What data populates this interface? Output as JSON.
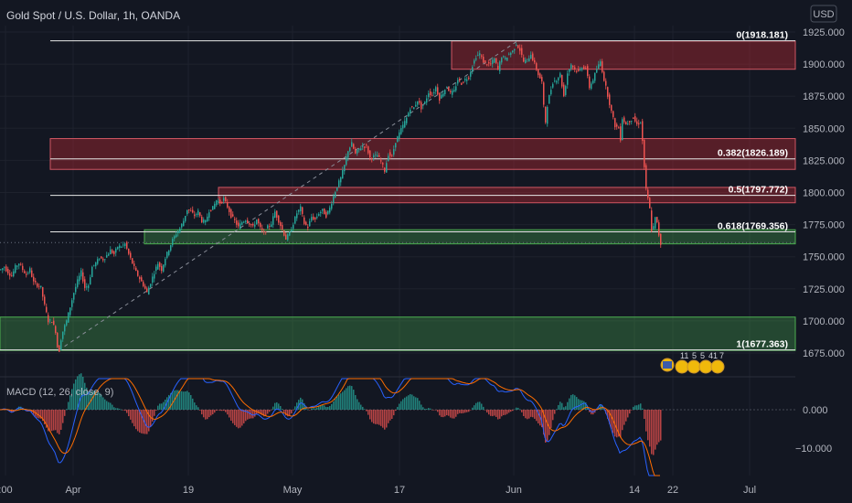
{
  "header": {
    "title": "Gold Spot / U.S. Dollar, 1h, OANDA",
    "currency": "USD"
  },
  "macd": {
    "label": "MACD (12, 26, close, 9)",
    "ticks": [
      "0.000",
      "−10.000"
    ]
  },
  "events": {
    "counts": [
      "11",
      "5",
      "5",
      "41",
      "7"
    ]
  },
  "chart_data": {
    "type": "candlestick",
    "title": "Gold Spot / U.S. Dollar, 1h, OANDA",
    "y_ticks": [
      "1925.000",
      "1900.000",
      "1875.000",
      "1850.000",
      "1825.000",
      "1800.000",
      "1775.000",
      "1750.000",
      "1725.000",
      "1700.000",
      "1675.000"
    ],
    "x_ticks": [
      ":00",
      "Apr",
      "19",
      "May",
      "17",
      "Jun",
      "14",
      "22",
      "Jul"
    ],
    "ylim": [
      1664,
      1930
    ],
    "fib_levels": [
      {
        "label": "0(1918.181)",
        "value": 1918.181
      },
      {
        "label": "0.382(1826.189)",
        "value": 1826.189
      },
      {
        "label": "0.5(1797.772)",
        "value": 1797.772
      },
      {
        "label": "0.618(1769.356)",
        "value": 1769.356
      },
      {
        "label": "1(1677.363)",
        "value": 1677.363
      }
    ],
    "zones": [
      {
        "kind": "resistance",
        "from": 1896,
        "to": 1918
      },
      {
        "kind": "resistance",
        "from": 1818,
        "to": 1842
      },
      {
        "kind": "resistance",
        "from": 1792,
        "to": 1804
      },
      {
        "kind": "support",
        "from": 1760,
        "to": 1771
      },
      {
        "kind": "support",
        "from": 1677,
        "to": 1703
      }
    ],
    "price_path": [
      [
        0,
        1740
      ],
      [
        4,
        1742
      ],
      [
        8,
        1738
      ],
      [
        12,
        1735
      ],
      [
        16,
        1742
      ],
      [
        20,
        1745
      ],
      [
        24,
        1740
      ],
      [
        28,
        1736
      ],
      [
        32,
        1740
      ],
      [
        36,
        1730
      ],
      [
        40,
        1728
      ],
      [
        44,
        1726
      ],
      [
        48,
        1712
      ],
      [
        52,
        1700
      ],
      [
        56,
        1700
      ],
      [
        60,
        1692
      ],
      [
        62,
        1680
      ],
      [
        64,
        1677
      ],
      [
        66,
        1686
      ],
      [
        68,
        1692
      ],
      [
        72,
        1700
      ],
      [
        76,
        1711
      ],
      [
        80,
        1722
      ],
      [
        84,
        1731
      ],
      [
        88,
        1738
      ],
      [
        92,
        1726
      ],
      [
        96,
        1728
      ],
      [
        100,
        1742
      ],
      [
        104,
        1745
      ],
      [
        108,
        1749
      ],
      [
        112,
        1748
      ],
      [
        116,
        1751
      ],
      [
        120,
        1755
      ],
      [
        124,
        1752
      ],
      [
        128,
        1758
      ],
      [
        132,
        1758
      ],
      [
        136,
        1760
      ],
      [
        140,
        1752
      ],
      [
        144,
        1745
      ],
      [
        148,
        1738
      ],
      [
        152,
        1733
      ],
      [
        156,
        1728
      ],
      [
        160,
        1722
      ],
      [
        164,
        1730
      ],
      [
        168,
        1738
      ],
      [
        172,
        1745
      ],
      [
        176,
        1740
      ],
      [
        180,
        1749
      ],
      [
        184,
        1756
      ],
      [
        188,
        1763
      ],
      [
        192,
        1768
      ],
      [
        196,
        1772
      ],
      [
        200,
        1778
      ],
      [
        204,
        1787
      ],
      [
        208,
        1785
      ],
      [
        212,
        1782
      ],
      [
        216,
        1785
      ],
      [
        220,
        1778
      ],
      [
        224,
        1777
      ],
      [
        228,
        1786
      ],
      [
        232,
        1788
      ],
      [
        236,
        1794
      ],
      [
        240,
        1792
      ],
      [
        244,
        1795
      ],
      [
        248,
        1789
      ],
      [
        252,
        1782
      ],
      [
        256,
        1778
      ],
      [
        260,
        1773
      ],
      [
        264,
        1777
      ],
      [
        268,
        1779
      ],
      [
        272,
        1776
      ],
      [
        276,
        1773
      ],
      [
        280,
        1779
      ],
      [
        284,
        1772
      ],
      [
        288,
        1768
      ],
      [
        292,
        1773
      ],
      [
        296,
        1776
      ],
      [
        300,
        1785
      ],
      [
        304,
        1778
      ],
      [
        308,
        1771
      ],
      [
        312,
        1764
      ],
      [
        316,
        1768
      ],
      [
        320,
        1776
      ],
      [
        324,
        1784
      ],
      [
        328,
        1788
      ],
      [
        332,
        1776
      ],
      [
        336,
        1773
      ],
      [
        340,
        1781
      ],
      [
        344,
        1779
      ],
      [
        348,
        1784
      ],
      [
        352,
        1786
      ],
      [
        356,
        1782
      ],
      [
        360,
        1788
      ],
      [
        364,
        1797
      ],
      [
        368,
        1805
      ],
      [
        372,
        1811
      ],
      [
        376,
        1821
      ],
      [
        380,
        1833
      ],
      [
        384,
        1838
      ],
      [
        388,
        1830
      ],
      [
        392,
        1834
      ],
      [
        396,
        1836
      ],
      [
        400,
        1836
      ],
      [
        404,
        1827
      ],
      [
        408,
        1828
      ],
      [
        412,
        1829
      ],
      [
        416,
        1824
      ],
      [
        420,
        1817
      ],
      [
        424,
        1830
      ],
      [
        428,
        1828
      ],
      [
        432,
        1840
      ],
      [
        436,
        1846
      ],
      [
        440,
        1852
      ],
      [
        444,
        1858
      ],
      [
        448,
        1866
      ],
      [
        452,
        1866
      ],
      [
        456,
        1872
      ],
      [
        460,
        1866
      ],
      [
        464,
        1870
      ],
      [
        468,
        1878
      ],
      [
        472,
        1876
      ],
      [
        476,
        1882
      ],
      [
        480,
        1873
      ],
      [
        484,
        1878
      ],
      [
        488,
        1883
      ],
      [
        492,
        1877
      ],
      [
        496,
        1879
      ],
      [
        500,
        1888
      ],
      [
        504,
        1885
      ],
      [
        508,
        1888
      ],
      [
        512,
        1890
      ],
      [
        516,
        1899
      ],
      [
        520,
        1906
      ],
      [
        524,
        1908
      ],
      [
        528,
        1902
      ],
      [
        532,
        1900
      ],
      [
        536,
        1900
      ],
      [
        540,
        1904
      ],
      [
        544,
        1896
      ],
      [
        548,
        1906
      ],
      [
        552,
        1904
      ],
      [
        556,
        1908
      ],
      [
        560,
        1910
      ],
      [
        564,
        1916
      ],
      [
        568,
        1911
      ],
      [
        572,
        1902
      ],
      [
        576,
        1903
      ],
      [
        580,
        1908
      ],
      [
        584,
        1900
      ],
      [
        588,
        1892
      ],
      [
        592,
        1886
      ],
      [
        594,
        1867
      ],
      [
        596,
        1855
      ],
      [
        598,
        1868
      ],
      [
        600,
        1875
      ],
      [
        604,
        1886
      ],
      [
        608,
        1888
      ],
      [
        612,
        1892
      ],
      [
        616,
        1875
      ],
      [
        620,
        1893
      ],
      [
        624,
        1900
      ],
      [
        628,
        1896
      ],
      [
        632,
        1894
      ],
      [
        636,
        1898
      ],
      [
        640,
        1897
      ],
      [
        644,
        1882
      ],
      [
        648,
        1888
      ],
      [
        652,
        1896
      ],
      [
        656,
        1902
      ],
      [
        660,
        1888
      ],
      [
        664,
        1876
      ],
      [
        668,
        1863
      ],
      [
        672,
        1852
      ],
      [
        676,
        1850
      ],
      [
        678,
        1842
      ],
      [
        680,
        1858
      ],
      [
        684,
        1853
      ],
      [
        688,
        1856
      ],
      [
        692,
        1858
      ],
      [
        696,
        1853
      ],
      [
        700,
        1855
      ],
      [
        702,
        1840
      ],
      [
        704,
        1820
      ],
      [
        706,
        1802
      ],
      [
        708,
        1795
      ],
      [
        710,
        1787
      ],
      [
        712,
        1771
      ],
      [
        714,
        1773
      ],
      [
        716,
        1780
      ],
      [
        718,
        1776
      ],
      [
        720,
        1767
      ],
      [
        722,
        1760
      ]
    ]
  }
}
